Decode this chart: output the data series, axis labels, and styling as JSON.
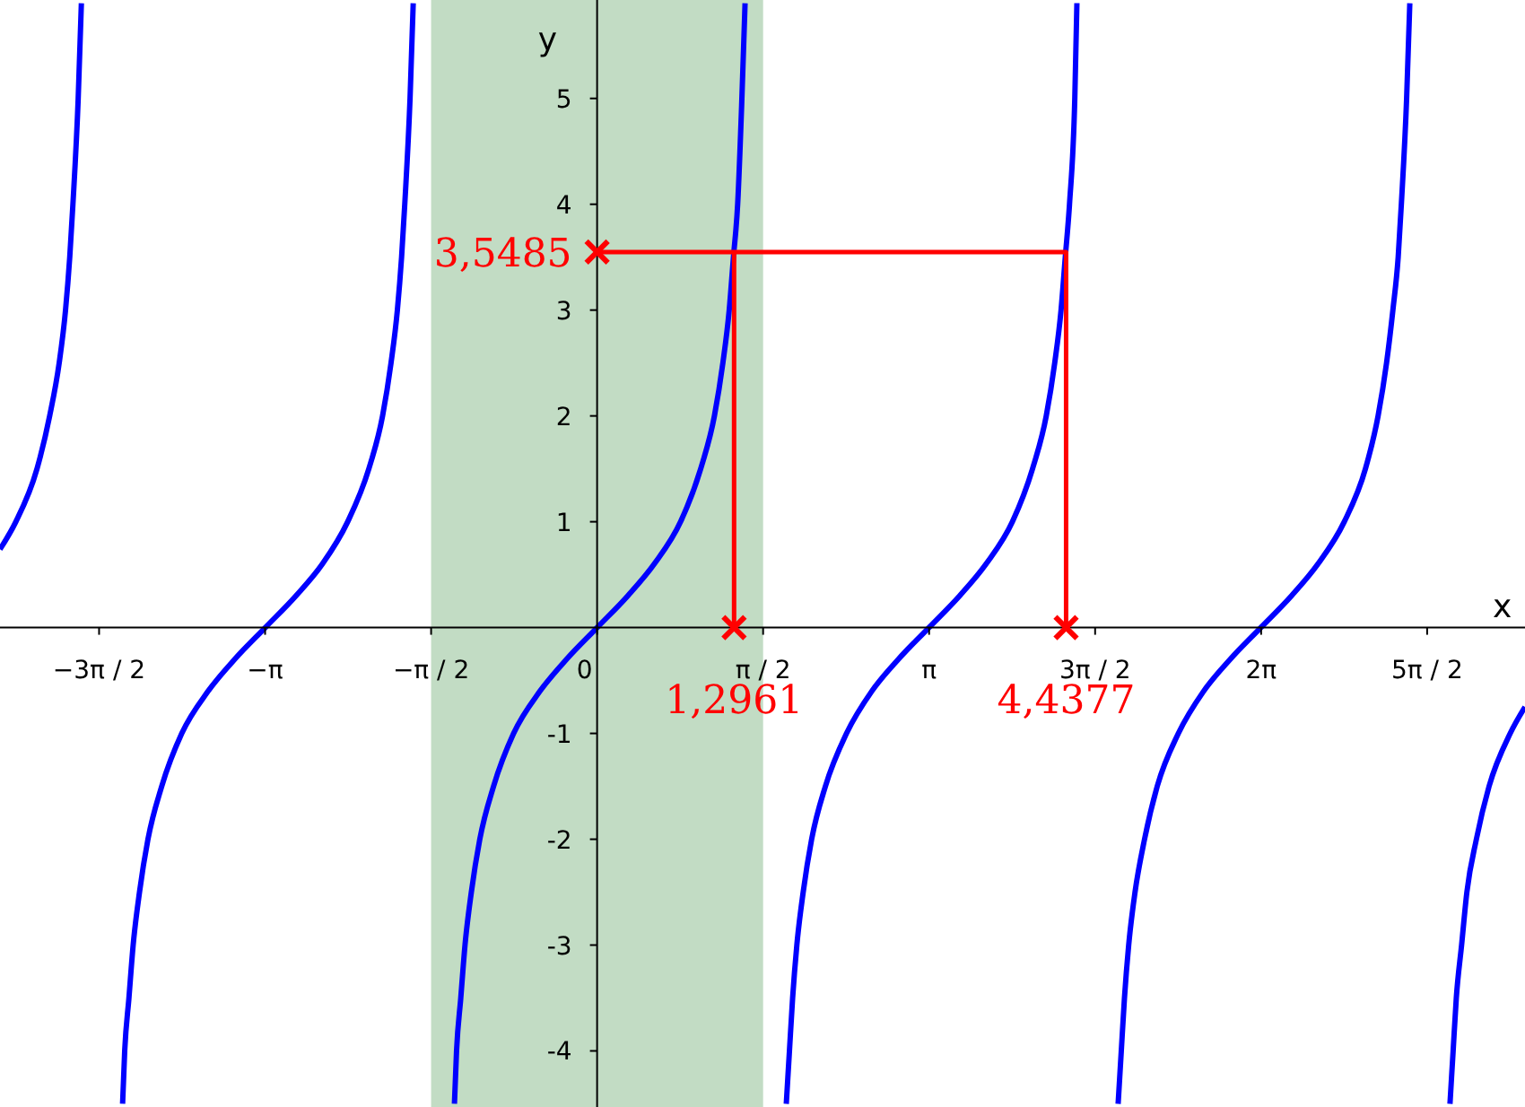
{
  "chart_data": {
    "type": "line",
    "xlabel": "x",
    "ylabel": "y",
    "xlim": [
      -5.65,
      8.78
    ],
    "ylim": [
      -4.53,
      5.93
    ],
    "xticks": [
      {
        "value": -4.7124,
        "label": "−3π / 2"
      },
      {
        "value": -3.1416,
        "label": "−π"
      },
      {
        "value": -1.5708,
        "label": "−π / 2"
      },
      {
        "value": 0,
        "label": "0"
      },
      {
        "value": 1.5708,
        "label": "π / 2"
      },
      {
        "value": 3.1416,
        "label": "π"
      },
      {
        "value": 4.7124,
        "label": "3π / 2"
      },
      {
        "value": 6.2832,
        "label": "2π"
      },
      {
        "value": 7.854,
        "label": "5π / 2"
      }
    ],
    "yticks": [
      -4,
      -3,
      -2,
      -1,
      1,
      2,
      3,
      4,
      5
    ],
    "grid": false,
    "legend": false,
    "line_style": "solid",
    "bands": [
      {
        "axis": "x",
        "from": -1.5708,
        "to": 1.5708,
        "color": "#c2dcc4"
      }
    ],
    "annotations": [
      {
        "text": "3,5485",
        "x": 0,
        "y": 3.5485
      },
      {
        "text": "1,2961",
        "x": 1.2961,
        "y": 0
      },
      {
        "text": "4,4377",
        "x": 4.4377,
        "y": 0
      }
    ],
    "series": [
      {
        "color": "#0000ff",
        "x": [
          -5.65,
          -5.5,
          -5.3,
          -5.18,
          -5.09,
          -5.03,
          -4.99,
          -4.96,
          -4.91,
          -4.88
        ],
        "values": [
          0.74,
          1,
          1.5,
          2,
          2.5,
          3,
          3.5,
          4,
          5,
          5.9
        ]
      },
      {
        "color": "#0000ff",
        "x": [
          -4.49,
          -4.47,
          -4.43,
          -4.39,
          -4.33,
          -4.25,
          -4.12,
          -3.93,
          -3.68,
          -3.43,
          -3.14,
          -2.85,
          -2.6,
          -2.36,
          -2.16,
          -2.03,
          -1.95,
          -1.89,
          -1.85,
          -1.82,
          -1.77,
          -1.74
        ],
        "values": [
          -4.5,
          -4,
          -3.5,
          -3,
          -2.5,
          -2,
          -1.5,
          -1,
          -0.6,
          -0.3,
          0,
          0.3,
          0.6,
          1,
          1.5,
          2,
          2.5,
          3,
          3.5,
          4,
          5,
          5.9
        ]
      },
      {
        "color": "#0000ff",
        "x": [
          -1.35,
          -1.33,
          -1.29,
          -1.25,
          -1.19,
          -1.11,
          -0.98,
          -0.79,
          -0.54,
          -0.29,
          0,
          0.29,
          0.54,
          0.79,
          0.98,
          1.11,
          1.19,
          1.25,
          1.29,
          1.33,
          1.37,
          1.4
        ],
        "values": [
          -4.5,
          -4,
          -3.5,
          -3,
          -2.5,
          -2,
          -1.5,
          -1,
          -0.6,
          -0.3,
          0,
          0.3,
          0.6,
          1,
          1.5,
          2,
          2.5,
          3,
          3.5,
          4,
          5,
          5.9
        ]
      },
      {
        "color": "#0000ff",
        "x": [
          1.79,
          1.82,
          1.85,
          1.89,
          1.95,
          2.03,
          2.16,
          2.36,
          2.6,
          2.85,
          3.14,
          3.43,
          3.68,
          3.93,
          4.12,
          4.25,
          4.33,
          4.39,
          4.43,
          4.47,
          4.52,
          4.54
        ],
        "values": [
          -4.5,
          -4,
          -3.5,
          -3,
          -2.5,
          -2,
          -1.5,
          -1,
          -0.6,
          -0.3,
          0,
          0.3,
          0.6,
          1,
          1.5,
          2,
          2.5,
          3,
          3.5,
          4,
          5,
          5.9
        ]
      },
      {
        "color": "#0000ff",
        "x": [
          4.93,
          4.96,
          4.99,
          5.03,
          5.09,
          5.18,
          5.3,
          5.5,
          5.74,
          5.99,
          6.28,
          6.57,
          6.82,
          7.07,
          7.27,
          7.39,
          7.47,
          7.53,
          7.58,
          7.61,
          7.66,
          7.69
        ],
        "values": [
          -4.5,
          -4,
          -3.5,
          -3,
          -2.5,
          -2,
          -1.5,
          -1,
          -0.6,
          -0.3,
          0,
          0.3,
          0.6,
          1,
          1.5,
          2,
          2.5,
          3,
          3.5,
          4,
          5,
          5.9
        ]
      },
      {
        "color": "#0000ff",
        "x": [
          8.07,
          8.1,
          8.13,
          8.18,
          8.23,
          8.32,
          8.44,
          8.64,
          8.78
        ],
        "values": [
          -4.5,
          -4,
          -3.5,
          -3,
          -2.5,
          -2,
          -1.5,
          -1,
          -0.75
        ]
      },
      {
        "type": "line",
        "color": "#ff0000",
        "x": [
          1.2961,
          1.2961
        ],
        "values": [
          0,
          3.5485
        ]
      },
      {
        "type": "line",
        "color": "#ff0000",
        "x": [
          0,
          4.4377,
          4.4377
        ],
        "values": [
          3.5485,
          3.5485,
          0
        ]
      },
      {
        "type": "scatter",
        "color": "#ff0000",
        "marker": "cross",
        "x": [
          1.2961,
          0,
          4.4377
        ],
        "values": [
          0,
          3.5485,
          0
        ]
      }
    ]
  }
}
